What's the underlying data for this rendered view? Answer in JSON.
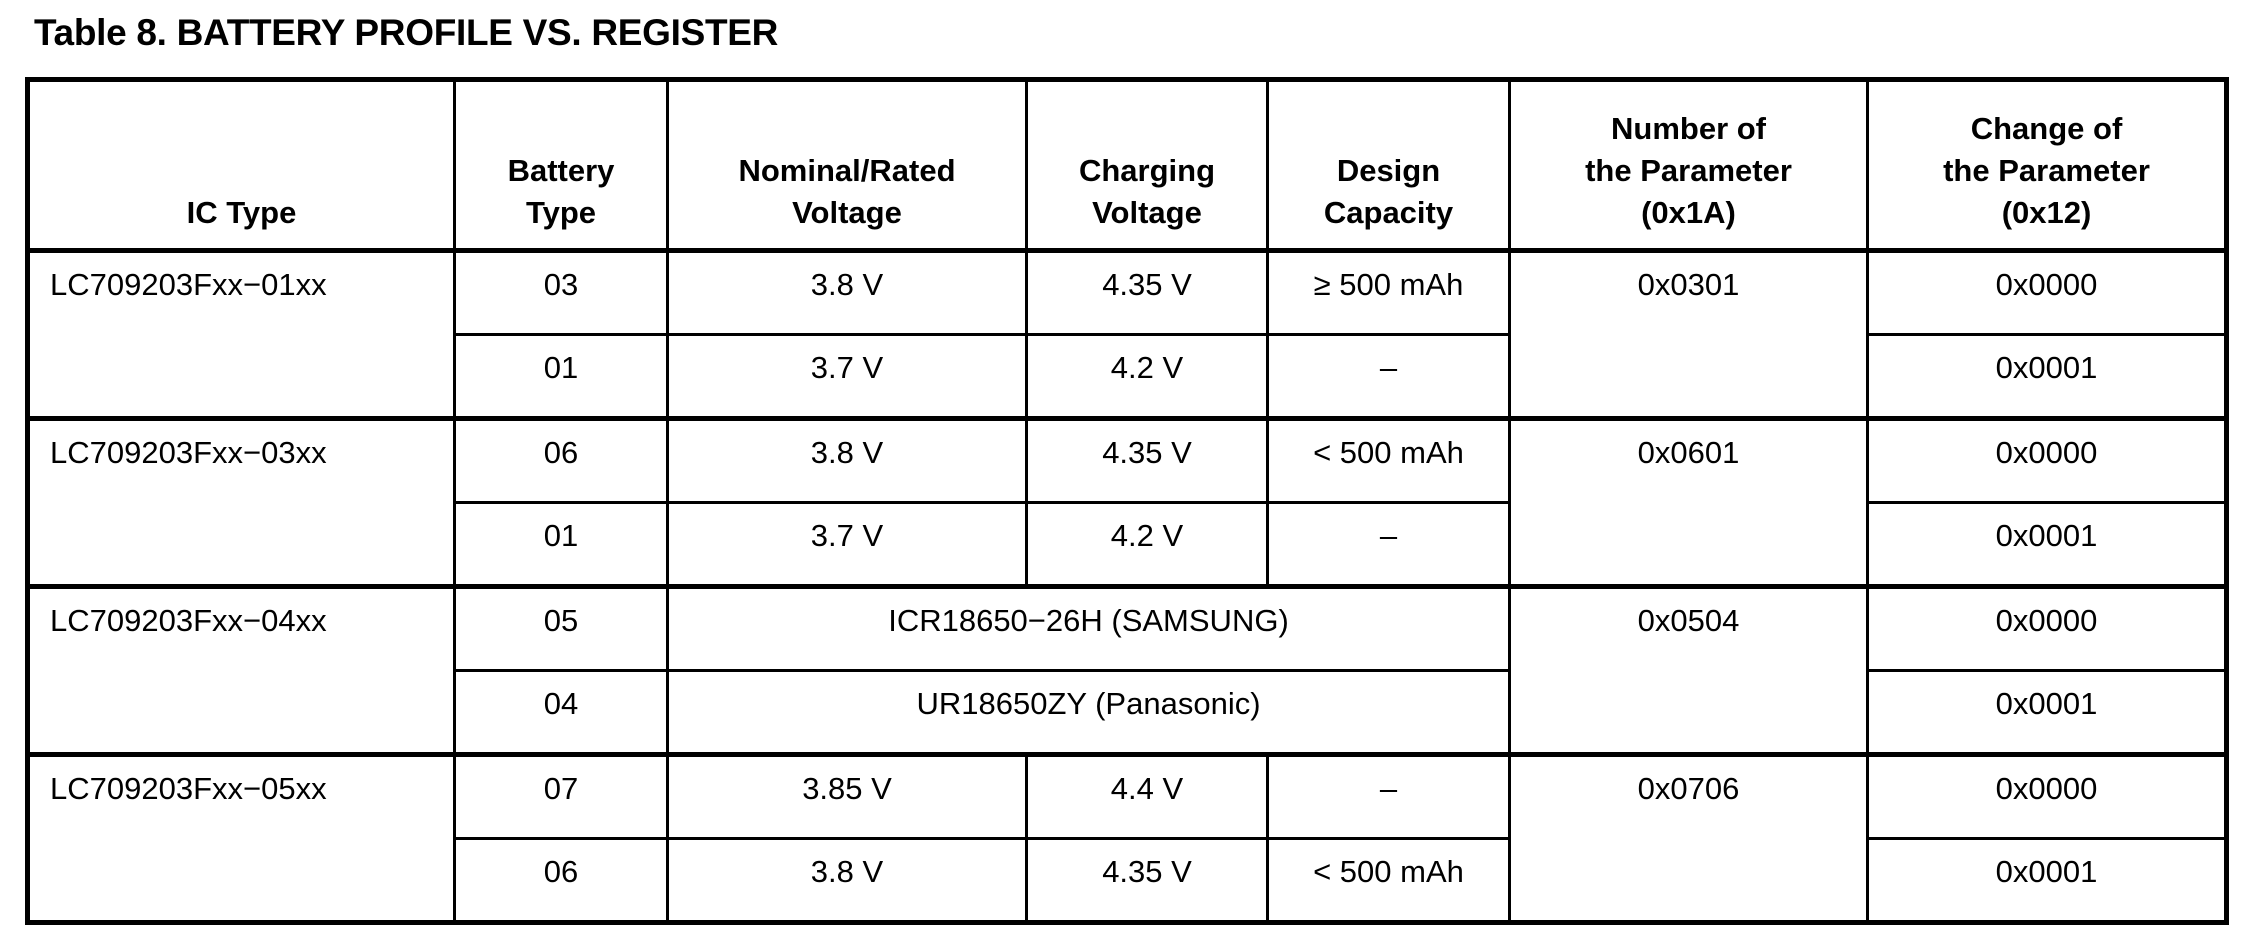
{
  "title": "Table 8. BATTERY PROFILE VS. REGISTER",
  "headers": [
    "IC Type",
    "Battery\nType",
    "Nominal/Rated\nVoltage",
    "Charging\nVoltage",
    "Design\nCapacity",
    "Number of\nthe Parameter\n(0x1A)",
    "Change of\nthe Parameter\n(0x12)"
  ],
  "groups": [
    {
      "ic": "LC709203Fxx−01xx",
      "param": "0x0301",
      "rows": [
        {
          "battery": "03",
          "nominal": "3.8 V",
          "charging": "4.35 V",
          "capacity": "≥ 500 mAh",
          "change": "0x0000"
        },
        {
          "battery": "01",
          "nominal": "3.7 V",
          "charging": "4.2 V",
          "capacity": "–",
          "change": "0x0001"
        }
      ]
    },
    {
      "ic": "LC709203Fxx−03xx",
      "param": "0x0601",
      "rows": [
        {
          "battery": "06",
          "nominal": "3.8 V",
          "charging": "4.35 V",
          "capacity": "< 500 mAh",
          "change": "0x0000"
        },
        {
          "battery": "01",
          "nominal": "3.7 V",
          "charging": "4.2 V",
          "capacity": "–",
          "change": "0x0001"
        }
      ]
    },
    {
      "ic": "LC709203Fxx−04xx",
      "param": "0x0504",
      "rows": [
        {
          "battery": "05",
          "merged": "ICR18650−26H (SAMSUNG)",
          "change": "0x0000"
        },
        {
          "battery": "04",
          "merged": "UR18650ZY (Panasonic)",
          "change": "0x0001"
        }
      ]
    },
    {
      "ic": "LC709203Fxx−05xx",
      "param": "0x0706",
      "rows": [
        {
          "battery": "07",
          "nominal": "3.85 V",
          "charging": "4.4 V",
          "capacity": "–",
          "change": "0x0000"
        },
        {
          "battery": "06",
          "nominal": "3.8 V",
          "charging": "4.35 V",
          "capacity": "< 500 mAh",
          "change": "0x0001"
        }
      ]
    }
  ]
}
